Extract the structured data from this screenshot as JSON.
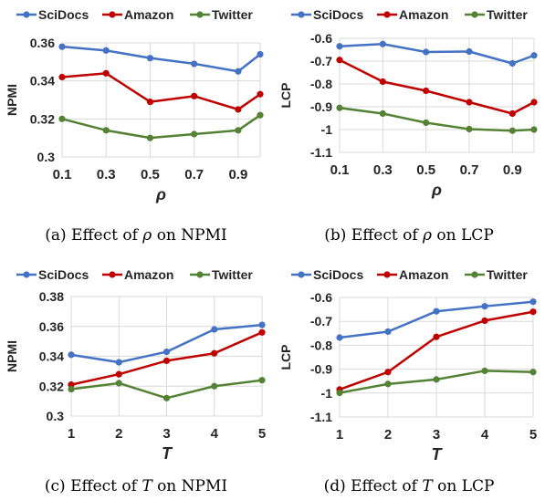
{
  "colors": {
    "SciDocs": "#4472C4",
    "Amazon": "#C00000",
    "Twitter": "#548235",
    "grid": "#d9d9d9",
    "text": "#262626"
  },
  "captions": [
    {
      "pre": "(a)  Effect of ",
      "sym": "ρ",
      "post": " on NPMI"
    },
    {
      "pre": "(b)  Effect of ",
      "sym": "ρ",
      "post": " on LCP"
    },
    {
      "pre": "(c)  Effect of ",
      "sym": "T",
      "post": " on NPMI"
    },
    {
      "pre": "(d)  Effect of ",
      "sym": "T",
      "post": " on LCP"
    }
  ],
  "chart_data": [
    {
      "type": "line",
      "xlabel": "ρ",
      "ylabel": "NPMI",
      "x": [
        0.1,
        0.3,
        0.5,
        0.7,
        0.9,
        1.0
      ],
      "xticks": [
        "0.1",
        "0.3",
        "0.5",
        "0.7",
        "0.9"
      ],
      "xtick_values": [
        0.1,
        0.3,
        0.5,
        0.7,
        0.9
      ],
      "xlim": [
        0.1,
        1.0
      ],
      "ylim": [
        0.3,
        0.36
      ],
      "yticks": [
        "0.3",
        "0.32",
        "0.34",
        "0.36"
      ],
      "ytick_values": [
        0.3,
        0.32,
        0.34,
        0.36
      ],
      "grid": true,
      "legend": "top",
      "series": [
        {
          "name": "SciDocs",
          "values": [
            0.358,
            0.356,
            0.352,
            0.349,
            0.345,
            0.354
          ]
        },
        {
          "name": "Amazon",
          "values": [
            0.342,
            0.344,
            0.329,
            0.332,
            0.325,
            0.333
          ]
        },
        {
          "name": "Twitter",
          "values": [
            0.32,
            0.314,
            0.31,
            0.312,
            0.314,
            0.322
          ]
        }
      ]
    },
    {
      "type": "line",
      "xlabel": "ρ",
      "ylabel": "LCP",
      "x": [
        0.1,
        0.3,
        0.5,
        0.7,
        0.9,
        1.0
      ],
      "xticks": [
        "0.1",
        "0.3",
        "0.5",
        "0.7",
        "0.9"
      ],
      "xtick_values": [
        0.1,
        0.3,
        0.5,
        0.7,
        0.9
      ],
      "xlim": [
        0.1,
        1.0
      ],
      "ylim": [
        -1.1,
        -0.6
      ],
      "yticks": [
        "-0.6",
        "-0.7",
        "-0.8",
        "-0.9",
        "-1",
        "-1.1"
      ],
      "ytick_values": [
        -0.6,
        -0.7,
        -0.8,
        -0.9,
        -1.0,
        -1.1
      ],
      "grid": true,
      "legend": "top",
      "series": [
        {
          "name": "SciDocs",
          "values": [
            -0.635,
            -0.625,
            -0.66,
            -0.658,
            -0.71,
            -0.675
          ]
        },
        {
          "name": "Amazon",
          "values": [
            -0.695,
            -0.79,
            -0.83,
            -0.88,
            -0.93,
            -0.88
          ]
        },
        {
          "name": "Twitter",
          "values": [
            -0.905,
            -0.93,
            -0.97,
            -0.998,
            -1.005,
            -1.0
          ]
        }
      ]
    },
    {
      "type": "line",
      "xlabel": "T",
      "ylabel": "NPMI",
      "x": [
        1,
        2,
        3,
        4,
        5
      ],
      "xticks": [
        "1",
        "2",
        "3",
        "4",
        "5"
      ],
      "xtick_values": [
        1,
        2,
        3,
        4,
        5
      ],
      "xlim": [
        1,
        5
      ],
      "ylim": [
        0.3,
        0.38
      ],
      "yticks": [
        "0.3",
        "0.32",
        "0.34",
        "0.36",
        "0.38"
      ],
      "ytick_values": [
        0.3,
        0.32,
        0.34,
        0.36,
        0.38
      ],
      "grid": true,
      "legend": "top",
      "series": [
        {
          "name": "SciDocs",
          "values": [
            0.341,
            0.336,
            0.343,
            0.358,
            0.361
          ]
        },
        {
          "name": "Amazon",
          "values": [
            0.321,
            0.328,
            0.337,
            0.342,
            0.356
          ]
        },
        {
          "name": "Twitter",
          "values": [
            0.318,
            0.322,
            0.312,
            0.32,
            0.324
          ]
        }
      ]
    },
    {
      "type": "line",
      "xlabel": "T",
      "ylabel": "LCP",
      "x": [
        1,
        2,
        3,
        4,
        5
      ],
      "xticks": [
        "1",
        "2",
        "3",
        "4",
        "5"
      ],
      "xtick_values": [
        1,
        2,
        3,
        4,
        5
      ],
      "xlim": [
        1,
        5
      ],
      "ylim": [
        -1.1,
        -0.6
      ],
      "yticks": [
        "-0.6",
        "-0.7",
        "-0.8",
        "-0.9",
        "-1",
        "-1.1"
      ],
      "ytick_values": [
        -0.6,
        -0.7,
        -0.8,
        -0.9,
        -1.0,
        -1.1
      ],
      "grid": true,
      "legend": "top",
      "series": [
        {
          "name": "SciDocs",
          "values": [
            -0.768,
            -0.743,
            -0.658,
            -0.637,
            -0.618
          ]
        },
        {
          "name": "Amazon",
          "values": [
            -0.985,
            -0.912,
            -0.765,
            -0.697,
            -0.66
          ]
        },
        {
          "name": "Twitter",
          "values": [
            -0.999,
            -0.962,
            -0.943,
            -0.907,
            -0.912
          ]
        }
      ]
    }
  ]
}
